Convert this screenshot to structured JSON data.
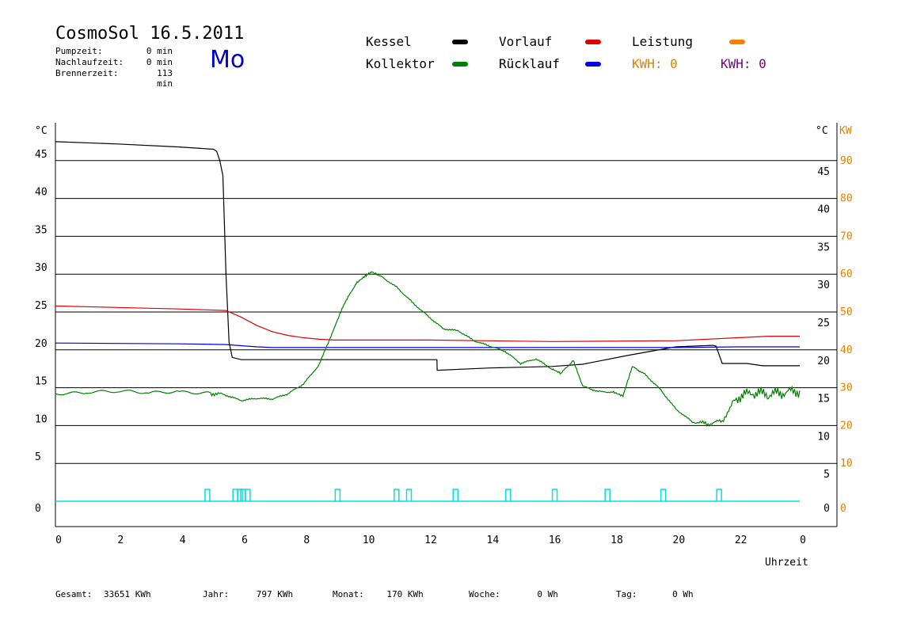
{
  "header": {
    "title": "CosmoSol 16.5.2011",
    "day": "Mo",
    "stats": [
      {
        "label": "Pumpzeit:",
        "value": "0 min"
      },
      {
        "label": "Nachlaufzeit:",
        "value": "0 min"
      },
      {
        "label": "Brennerzeit:",
        "value": "113 min"
      }
    ]
  },
  "legend": [
    {
      "label": "Kessel",
      "color": "#000000"
    },
    {
      "label": "Kollektor",
      "color": "#008000"
    },
    {
      "label": "Vorlauf",
      "color": "#e00000"
    },
    {
      "label": "Rücklauf",
      "color": "#0000e0"
    },
    {
      "label": "Leistung",
      "color": "#ff8000"
    }
  ],
  "kwh": [
    {
      "label": "KWH: 0",
      "color": "#e08000"
    },
    {
      "label": "KWH: 0",
      "color": "#800080"
    }
  ],
  "colors": {
    "accent_orange": "#e08000",
    "switch_cyan": "#00e0e0"
  },
  "chart_data": {
    "type": "line",
    "xlabel": "Uhrzeit",
    "ylabel_left": "°C",
    "ylabel_right": "°C",
    "ylabel_right2": "KW",
    "xlim": [
      0,
      24
    ],
    "ylim": [
      0,
      50
    ],
    "ylim_kw": [
      0,
      100
    ],
    "x_ticks": [
      "0",
      "2",
      "4",
      "6",
      "8",
      "10",
      "12",
      "14",
      "16",
      "18",
      "20",
      "22",
      "0"
    ],
    "y_ticks": [
      "0",
      "5",
      "10",
      "15",
      "20",
      "25",
      "30",
      "35",
      "40",
      "45"
    ],
    "kw_ticks": [
      "0",
      "10",
      "20",
      "30",
      "40",
      "50",
      "60",
      "70",
      "80",
      "90"
    ],
    "grid": true,
    "series": [
      {
        "name": "Kessel",
        "color": "#000000",
        "x": [
          0,
          2,
          4,
          5.1,
          5.2,
          5.3,
          5.4,
          5.5,
          5.6,
          5.7,
          6.0,
          7.0,
          8.0,
          12.3,
          12.31,
          14,
          16,
          17,
          18.5,
          20,
          21.2,
          21.3,
          21.5,
          22.3,
          22.8,
          24
        ],
        "y": [
          47.5,
          47.2,
          46.8,
          46.5,
          46.2,
          45,
          43,
          30,
          21,
          19,
          18.7,
          18.7,
          18.7,
          18.7,
          17.3,
          17.6,
          17.8,
          18.1,
          19.3,
          20.4,
          20.6,
          20.5,
          18.2,
          18.2,
          17.9,
          17.9
        ]
      },
      {
        "name": "Vorlauf",
        "color": "#e00000",
        "x": [
          0,
          2,
          4,
          5.5,
          6.0,
          6.5,
          7.0,
          7.5,
          8.0,
          8.5,
          9,
          12,
          16,
          20,
          22,
          23,
          24
        ],
        "y": [
          25.8,
          25.6,
          25.4,
          25.2,
          24.3,
          23.2,
          22.4,
          21.9,
          21.6,
          21.4,
          21.3,
          21.3,
          21.1,
          21.2,
          21.6,
          21.8,
          21.8
        ]
      },
      {
        "name": "Rücklauf",
        "color": "#0000e0",
        "x": [
          0,
          2,
          4,
          5.5,
          6.5,
          7.0,
          10,
          12,
          14,
          16,
          18,
          20,
          22,
          24
        ],
        "y": [
          20.9,
          20.85,
          20.8,
          20.7,
          20.4,
          20.3,
          20.3,
          20.3,
          20.3,
          20.3,
          20.3,
          20.3,
          20.4,
          20.4
        ]
      },
      {
        "name": "Kollektor",
        "color": "#008000",
        "x": [
          0,
          1,
          2,
          3,
          4,
          5,
          5.5,
          6,
          6.5,
          7,
          7.5,
          8,
          8.5,
          9,
          9.3,
          9.7,
          10,
          10.2,
          10.5,
          11,
          11.5,
          12,
          12.5,
          13,
          13.5,
          14,
          14.5,
          15,
          15.5,
          16,
          16.3,
          16.7,
          17,
          17.5,
          18,
          18.3,
          18.6,
          19,
          19.5,
          20,
          20.5,
          21,
          21.5,
          22,
          22.5,
          23,
          23.5,
          24
        ],
        "y": [
          14.2,
          14.3,
          14.4,
          14.2,
          14.4,
          14.3,
          14,
          13.3,
          13.6,
          13.5,
          14.2,
          15.5,
          18,
          23,
          26,
          28.8,
          29.8,
          30.3,
          29.7,
          28.3,
          26.3,
          24.5,
          22.8,
          22.5,
          21.2,
          20.5,
          19.8,
          18.2,
          18.8,
          17.5,
          16.9,
          18.6,
          15.2,
          14.5,
          14.4,
          13.9,
          17.8,
          16.8,
          14.8,
          12.2,
          10.6,
          10.2,
          10.6,
          13.8,
          14.3,
          14.1,
          14.3,
          14.6
        ]
      }
    ],
    "switch_pulses_h": [
      4.9,
      5.8,
      5.95,
      6.05,
      6.2,
      9.1,
      11.0,
      11.4,
      12.9,
      14.6,
      16.1,
      17.8,
      19.6,
      21.4
    ]
  },
  "footer": [
    {
      "label": "Gesamt:",
      "value": "33651 KWh"
    },
    {
      "label": "Jahr:",
      "value": "797 KWh"
    },
    {
      "label": "Monat:",
      "value": "170 KWh"
    },
    {
      "label": "Woche:",
      "value": "0 Wh"
    },
    {
      "label": "Tag:",
      "value": "0 Wh"
    }
  ]
}
